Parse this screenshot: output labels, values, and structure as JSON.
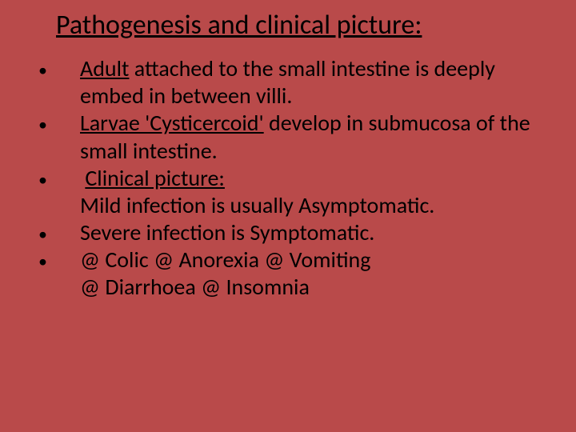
{
  "background_color": "#b94a4a",
  "text_color": "#000000",
  "title_fontsize": 34,
  "body_fontsize": 28,
  "font_family": "Calibri",
  "title": "Pathogenesis and clinical picture:",
  "bullets": [
    {
      "underlined_lead": "Adult",
      "rest": " attached to the small intestine is deeply embed in between villi."
    },
    {
      "underlined_lead": "Larvae 'Cysticercoid'",
      "rest": " develop in submucosa of the small intestine."
    },
    {
      "line1_underlined": "Clinical picture:",
      "line2": " Mild infection is usually Asymptomatic."
    },
    {
      "line": " Severe infection is Symptomatic."
    },
    {
      "line1": "@ Colic   @ Anorexia   @ Vomiting",
      "line2": "@ Diarrhoea   @ Insomnia"
    }
  ]
}
